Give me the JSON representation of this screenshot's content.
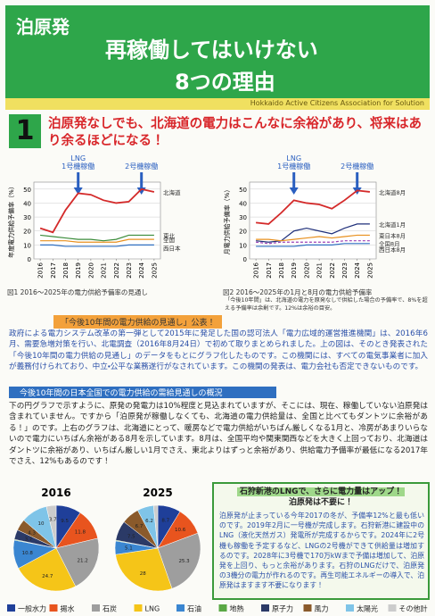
{
  "header": {
    "title_left": "泊原発",
    "title_main": "再稼働してはいけない",
    "title_sub": "8つの理由",
    "bar_text": "Hokkaido Active Citizens Association for Solution"
  },
  "section": {
    "number": "1",
    "heading": "泊原発なしでも、北海道の電力はこんなに余裕があり、将来はあり余るほどになる！"
  },
  "chart_data": [
    {
      "type": "line",
      "caption": "図1 2016～2025年の電力供給予備率の見通し",
      "y_label": "年度電力供給予備率（%）",
      "x": [
        2016,
        2017,
        2018,
        2019,
        2020,
        2021,
        2022,
        2023,
        2024,
        2025
      ],
      "xlim": [
        2015.5,
        2025.5
      ],
      "ylim": [
        0,
        55
      ],
      "yticks": [
        0,
        10,
        20,
        30,
        40,
        50
      ],
      "grid": true,
      "annotations": [
        {
          "lines": [
            "LNG",
            "1号機稼働"
          ],
          "x": 2019
        },
        {
          "lines": [
            "2号機稼働"
          ],
          "x": 2024
        }
      ],
      "series": [
        {
          "name": "北海道",
          "color": "#d42a2a",
          "values": [
            22,
            19,
            35,
            47,
            46,
            42,
            40,
            41,
            50,
            48
          ]
        },
        {
          "name": "東北",
          "color": "#3b8c3b",
          "values": [
            17,
            16,
            15,
            14,
            14,
            13,
            14,
            17,
            17,
            17
          ]
        },
        {
          "name": "全国",
          "color": "#e8901e",
          "values": [
            13,
            13,
            13,
            12,
            12,
            12,
            12,
            14,
            14,
            14
          ]
        },
        {
          "name": "西日本",
          "color": "#2f6fc0",
          "values": [
            10,
            10,
            9,
            9,
            9,
            9,
            9,
            10,
            10,
            10
          ]
        }
      ]
    },
    {
      "type": "line",
      "caption": "図2 2016～2025年の1月と8月の電力供給予備率",
      "y_label": "月電力供給予備率（%）",
      "x": [
        2016,
        2017,
        2018,
        2019,
        2020,
        2021,
        2022,
        2023,
        2024,
        2025
      ],
      "xlim": [
        2015.5,
        2025.5
      ],
      "ylim": [
        0,
        55
      ],
      "yticks": [
        0,
        10,
        20,
        30,
        40,
        50
      ],
      "grid": true,
      "annotations": [
        {
          "lines": [
            "LNG",
            "1号機稼働"
          ],
          "x": 2019
        },
        {
          "lines": [
            "2号機稼働"
          ],
          "x": 2024
        }
      ],
      "series": [
        {
          "name": "北海道8月",
          "color": "#d42a2a",
          "values": [
            26,
            25,
            33,
            42,
            40,
            39,
            36,
            42,
            49,
            48
          ]
        },
        {
          "name": "北海道1月",
          "color": "#1f2f7a",
          "values": [
            13,
            12,
            13,
            20,
            22,
            20,
            18,
            22,
            25,
            25
          ]
        },
        {
          "name": "東日本8月",
          "color": "#e8901e",
          "values": [
            14,
            14,
            13,
            14,
            15,
            16,
            15,
            16,
            17,
            17
          ]
        },
        {
          "name": "全国8月",
          "color": "#9b3fb5",
          "dash": true,
          "values": [
            12,
            11,
            12,
            12,
            12,
            12,
            12,
            13,
            13,
            13
          ]
        },
        {
          "name": "西日本8月",
          "color": "#2f6fc0",
          "values": [
            9,
            9,
            9,
            9,
            10,
            10,
            10,
            11,
            11,
            11
          ]
        }
      ]
    },
    {
      "type": "pie",
      "title": "2016",
      "categories": [
        "一般水力",
        "揚水",
        "石炭",
        "LNG",
        "石油",
        "地熱",
        "原子力",
        "風力",
        "太陽光",
        "その他計"
      ],
      "colors": [
        "#1f3f99",
        "#e8541e",
        "#9e9e9e",
        "#f5c518",
        "#3a86d1",
        "#5aa845",
        "#2b3a67",
        "#8a5a2b",
        "#7fc4e8",
        "#cccccc"
      ],
      "values": [
        9.5,
        11.8,
        21.2,
        24.7,
        10.8,
        0.3,
        3.7,
        4.3,
        10.0,
        3.7
      ]
    },
    {
      "type": "pie",
      "title": "2025",
      "categories": [
        "一般水力",
        "揚水",
        "石炭",
        "LNG",
        "石油",
        "地熱",
        "原子力",
        "風力",
        "太陽光",
        "その他計"
      ],
      "colors": [
        "#1f3f99",
        "#e8541e",
        "#9e9e9e",
        "#f5c518",
        "#3a86d1",
        "#5aa845",
        "#2b3a67",
        "#8a5a2b",
        "#7fc4e8",
        "#cccccc"
      ],
      "values": [
        8.7,
        10.6,
        25.3,
        28.0,
        5.1,
        0.3,
        7.5,
        6.7,
        6.2,
        1.6
      ]
    }
  ],
  "note": "「今後10年間」は、北海道の電力を原発なしで供給した場合の予備率で、8%を超える予備率は余剰です。12%は余裕の目安。",
  "label_box": "「今後10年間の電力供給の見通し」公表！",
  "paragraph1": "政府による電力システム改革の第一弾として2015年に発足した国の認可法人「電力広域的運営推進機関」は、2016年6月、需要急増対策を行い、北電調査（2016年8月24日）で初めて取りまとめられました。上の図は、そのとき発表された「今後10年間の電力供給の見通し」のデータをもとにグラフ化したものです。この機関には、すべての電気事業者に加入が義務付けられており、中立・公平な業務遂行がなされています。この機関の発表は、電力会社も否定できないものです。",
  "bar2": "今後10年間の日本全国での電力供給の需給見通しの概況",
  "paragraph2": "下の円グラフで示すように、原発の発電力は10%程度と見込まれていますが、そこには、現在、稼働していない泊原発は含まれていません。ですから「泊原発が稼働しなくても、北海道の電力供給量は、全国と比べてもダントツに余裕がある！」のです。上右のグラフは、北海道にとって、暖房などで電力供給がいちばん厳しくなる1月と、冷房があまりいらないので電力にいちばん余裕がある8月を示しています。8月は、全国平均や関東関西などを大きく上回っており、北海道はダントツに余裕があり、いちばん厳しい1月でさえ、東北よりはずっと余裕があり、供給電力予備率が最低になる2017年でさえ、12%もあるのです！",
  "box": {
    "title_lines": [
      "石狩新港のLNGで、さらに電力量はアップ！",
      "泊原発は不要に！"
    ],
    "text": "泊原発が止まっている今年2017の冬が、予備率12%と最も低いのです。2019年2月に一号機が完成します。石狩新港に建設中のLNG（液化天然ガス）発電所が完成するからです。2024年に2号機も稼働を予定するなど、LNGの2号機ができて供給量は増加するのです。2028年に3号機で170万kWまで予備は増加して、泊原発を上回り、もっと余裕があります。石狩のLNGだけで、泊原発の3機分の電力が作れるのです。再生可能エネルギーの導入で、泊原発はますます不要になります！"
  }
}
